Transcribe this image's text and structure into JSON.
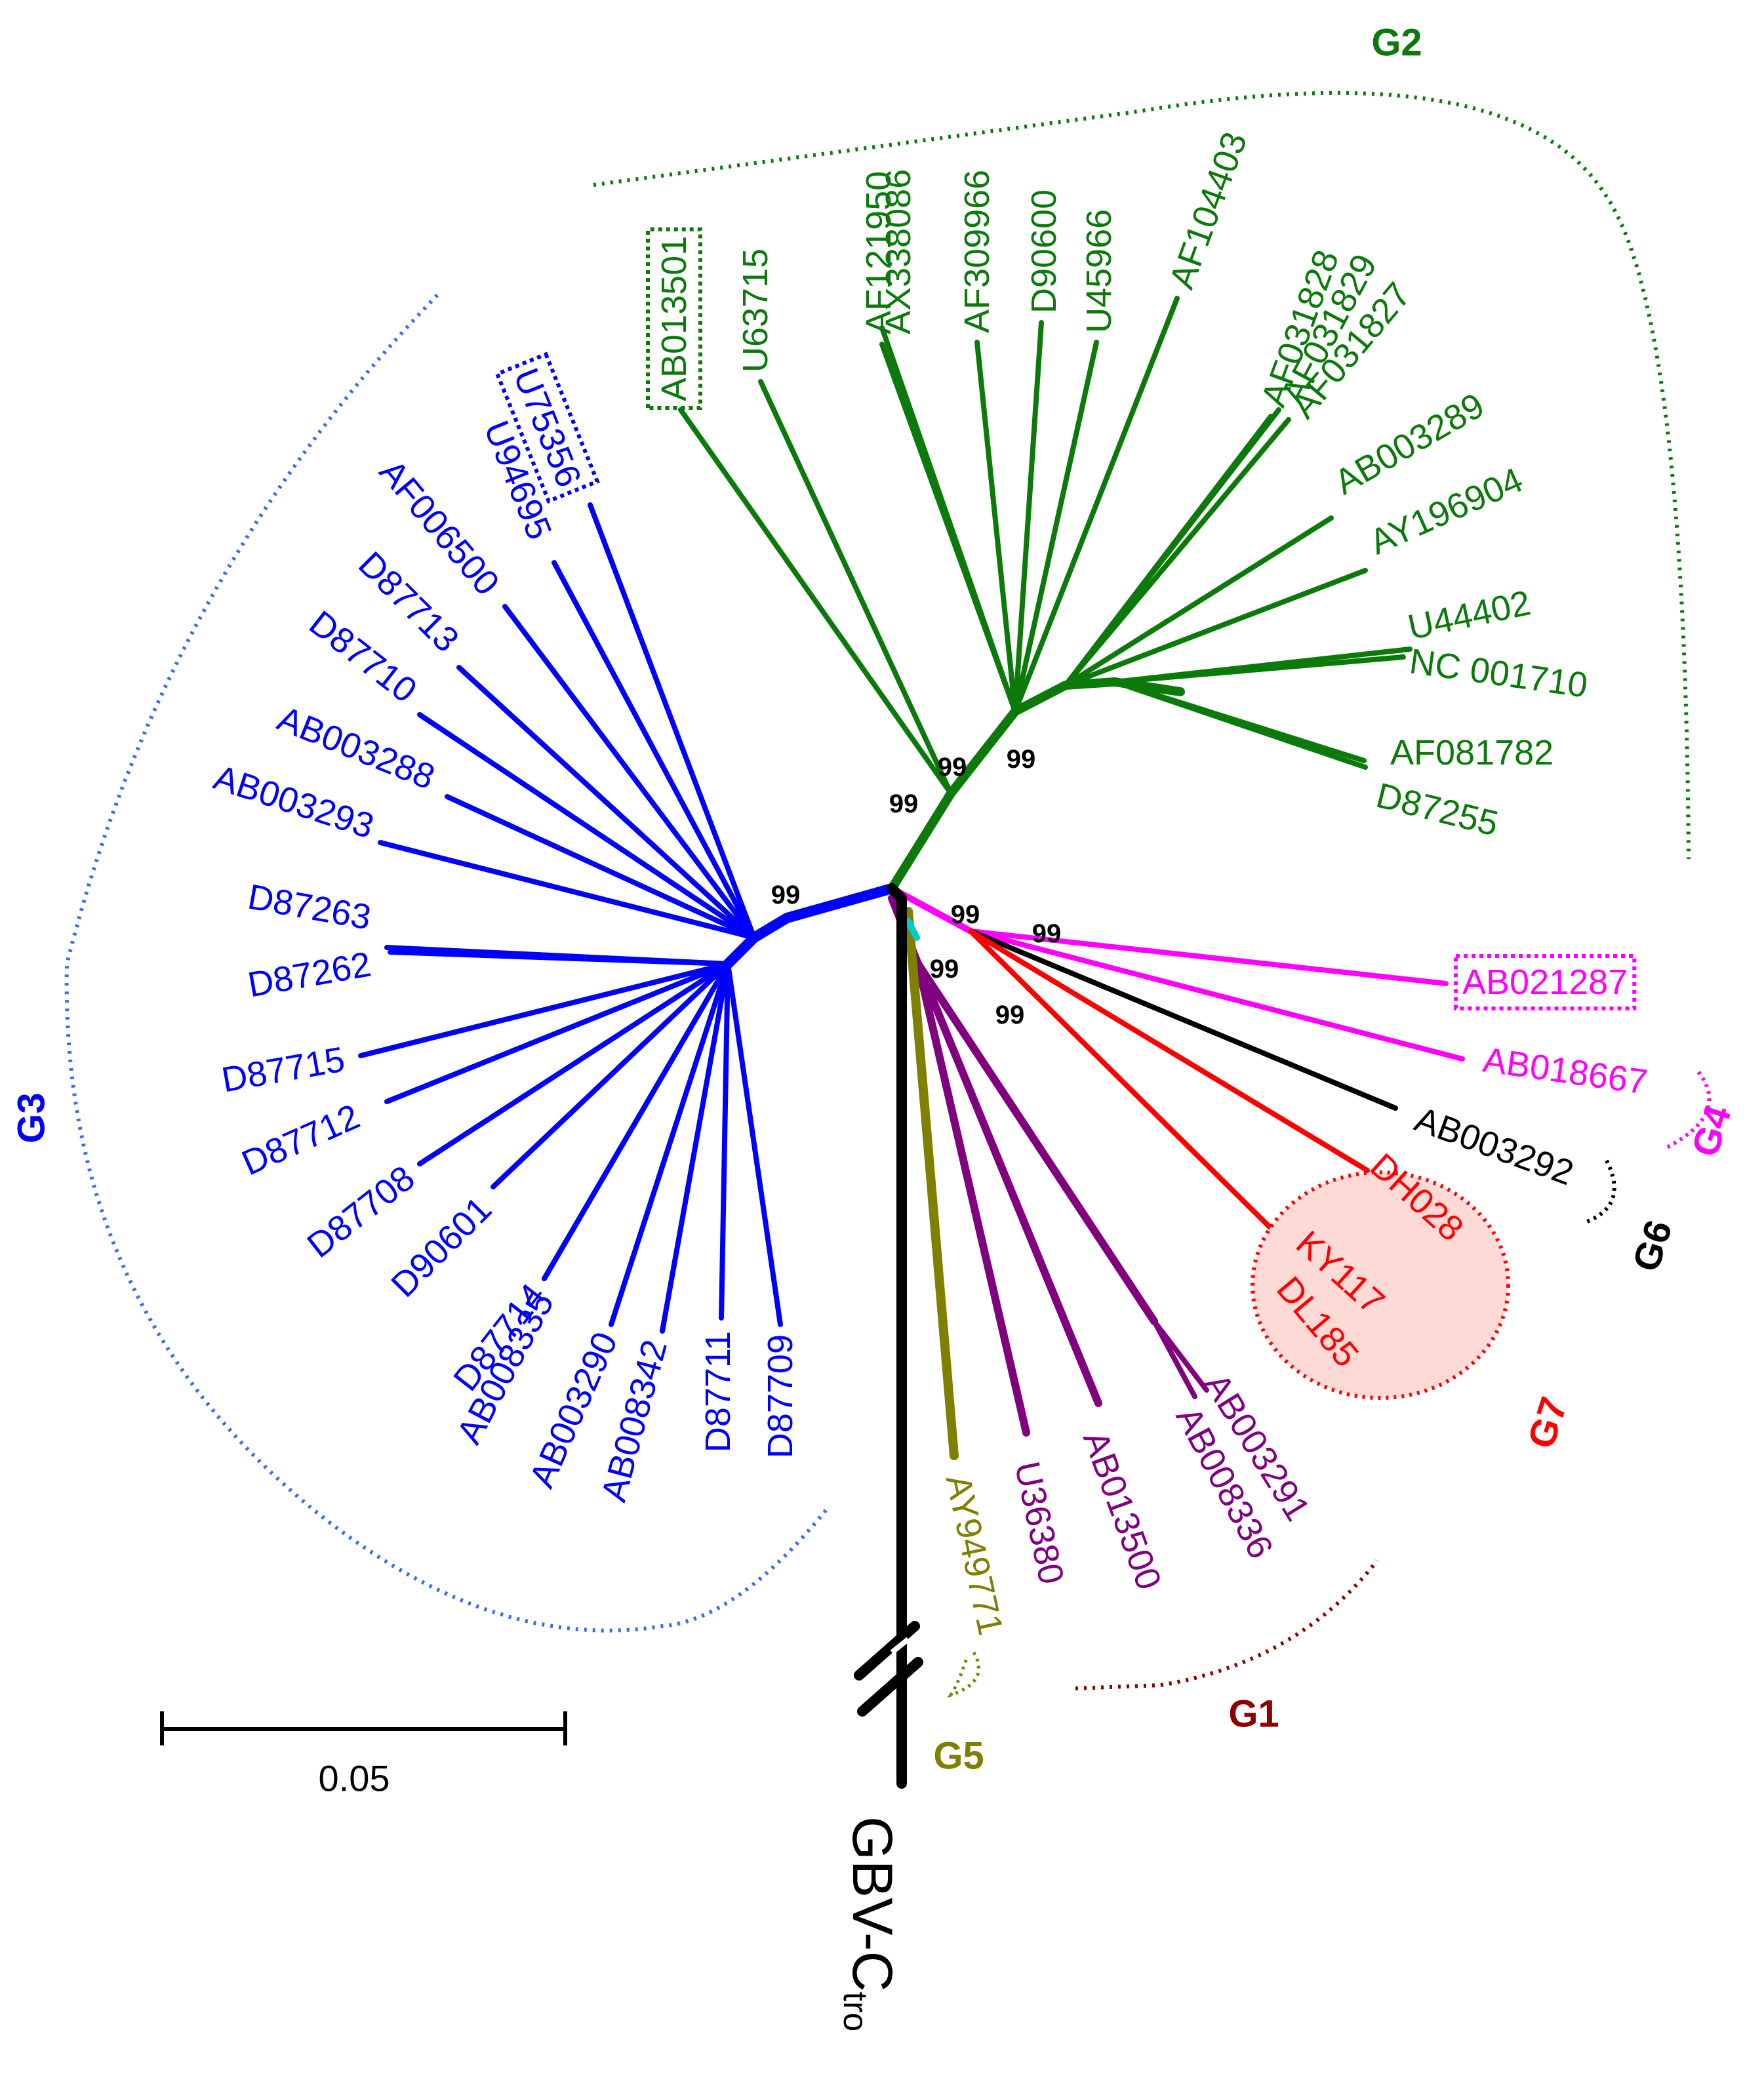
{
  "colors": {
    "G1": "#800080",
    "G1_label": "#8b0000",
    "G2": "#0b7a0b",
    "G3": "#0000ff",
    "G3_bracket": "#3a6ee8",
    "G4": "#ff00ff",
    "G5": "#808000",
    "G6": "#000000",
    "G7": "#ff0000",
    "G7_fill": "#fddad6",
    "outgroup": "#000000",
    "bootstrap": "#000000"
  },
  "groups": [
    {
      "id": "G1",
      "label": "G1"
    },
    {
      "id": "G2",
      "label": "G2"
    },
    {
      "id": "G3",
      "label": "G3"
    },
    {
      "id": "G4",
      "label": "G4"
    },
    {
      "id": "G5",
      "label": "G5"
    },
    {
      "id": "G6",
      "label": "G6"
    },
    {
      "id": "G7",
      "label": "G7"
    }
  ],
  "leaves": {
    "G2": [
      "AB013501",
      "U63715",
      "AF121950",
      "AX338086",
      "AF309966",
      "D90600",
      "U45966",
      "AF104403",
      "AF031828",
      "AF031829",
      "AF031827",
      "AB003289",
      "AY196904",
      "U44402",
      "NC 001710",
      "AF081782",
      "D87255"
    ],
    "G3": [
      "U75356",
      "U94695",
      "AF006500",
      "D87713",
      "D87710",
      "AB003288",
      "AB003293",
      "D87263",
      "D87262",
      "D87715",
      "D87712",
      "D87708",
      "D90601",
      "D87714",
      "AB008335",
      "AB003290",
      "AB008342",
      "D87711",
      "D87709"
    ],
    "G4": [
      "AB021287",
      "AB018667"
    ],
    "G6": [
      "AB003292"
    ],
    "G7": [
      "DH028",
      "KY117",
      "DL185"
    ],
    "G1": [
      "U36380",
      "AB013500",
      "AB008336",
      "AB003291"
    ],
    "G5": [
      "AY949771"
    ]
  },
  "highlighted_leaves": [
    "AB013501",
    "U75356",
    "AB021287"
  ],
  "bootstrap_values": [
    "99",
    "99",
    "99",
    "99",
    "99",
    "99",
    "99",
    "99"
  ],
  "outgroup": {
    "main": "GBV-C",
    "subscript": "tro"
  },
  "scale_bar": {
    "value": "0.05"
  }
}
